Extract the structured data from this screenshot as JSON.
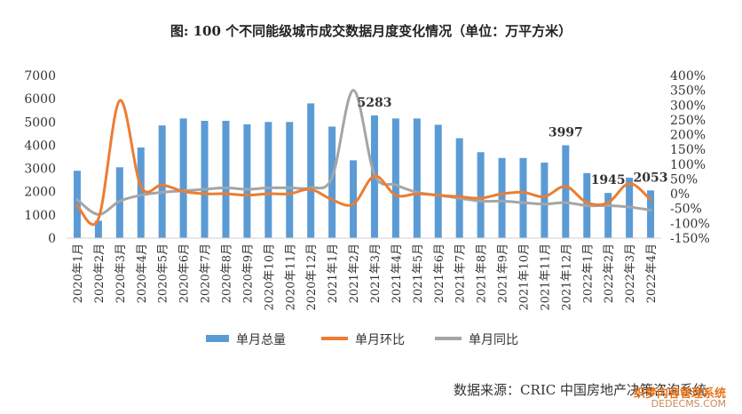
{
  "chart_data": {
    "type": "bar",
    "title": "图: 100 个不同能级城市成交数据月度变化情况（单位：万平方米）",
    "categories": [
      "2020年1月",
      "2020年2月",
      "2020年3月",
      "2020年4月",
      "2020年5月",
      "2020年6月",
      "2020年7月",
      "2020年8月",
      "2020年9月",
      "2020年10月",
      "2020年11月",
      "2020年12月",
      "2021年1月",
      "2021年2月",
      "2021年3月",
      "2021年4月",
      "2021年5月",
      "2021年6月",
      "2021年7月",
      "2021年8月",
      "2021年9月",
      "2021年10月",
      "2021年11月",
      "2021年12月",
      "2022年1月",
      "2022年2月",
      "2022年3月",
      "2022年4月"
    ],
    "series": [
      {
        "name": "单月总量",
        "axis": "left",
        "type": "bar",
        "color": "#5b9bd5",
        "values": [
          2900,
          750,
          3050,
          3900,
          4850,
          5150,
          5050,
          5050,
          4900,
          5000,
          5000,
          5800,
          4800,
          3350,
          5283,
          5150,
          5150,
          4880,
          4300,
          3700,
          3450,
          3450,
          3250,
          3997,
          2800,
          1945,
          2600,
          2053
        ]
      },
      {
        "name": "单月环比",
        "axis": "right",
        "type": "line",
        "color": "#ed7d31",
        "values": [
          -40,
          -85,
          315,
          25,
          30,
          8,
          0,
          0,
          -5,
          0,
          0,
          15,
          -20,
          -35,
          60,
          -5,
          0,
          -5,
          -10,
          -15,
          0,
          5,
          -10,
          25,
          -30,
          -30,
          35,
          -20
        ]
      },
      {
        "name": "单月同比",
        "axis": "right",
        "type": "line",
        "color": "#a5a5a5",
        "values": [
          -20,
          -70,
          -25,
          -5,
          5,
          10,
          15,
          20,
          15,
          20,
          20,
          20,
          55,
          350,
          65,
          30,
          5,
          -5,
          -15,
          -25,
          -25,
          -30,
          -35,
          -30,
          -40,
          -40,
          -45,
          -55
        ]
      }
    ],
    "annotations": [
      {
        "index": 14,
        "label": "5283"
      },
      {
        "index": 23,
        "label": "3997"
      },
      {
        "index": 25,
        "label": "1945"
      },
      {
        "index": 27,
        "label": "2053"
      }
    ],
    "left_axis": {
      "min": 0,
      "max": 7000,
      "step": 1000,
      "ticks": [
        "0",
        "1000",
        "2000",
        "3000",
        "4000",
        "5000",
        "6000",
        "7000"
      ]
    },
    "right_axis": {
      "min": -150,
      "max": 400,
      "step": 50,
      "ticks": [
        "-150%",
        "-100%",
        "-50%",
        "0%",
        "50%",
        "100%",
        "150%",
        "200%",
        "250%",
        "300%",
        "350%",
        "400%"
      ]
    },
    "legend": {
      "position": "bottom",
      "entries": [
        "单月总量",
        "单月环比",
        "单月同比"
      ]
    }
  },
  "source": "数据来源：CRIC 中国房地产决策咨询系统",
  "watermark": {
    "line1": "织梦内容管理系统",
    "line2": "DEDECMS.COM"
  }
}
